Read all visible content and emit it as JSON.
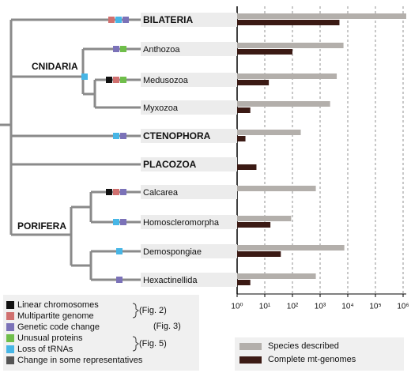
{
  "chart_data": {
    "type": "bar",
    "orientation": "horizontal",
    "xscale": "log",
    "categories": [
      "BILATERIA",
      "Anthozoa",
      "Medusozoa",
      "Myxozoa",
      "CTENOPHORA",
      "PLACOZOA",
      "Calcarea",
      "Homoscleromorpha",
      "Demospongiae",
      "Hexactinellida"
    ],
    "series": [
      {
        "name": "Species described",
        "color": "#b3afab",
        "values": [
          1300000,
          7000,
          4000,
          2300,
          200,
          1,
          700,
          90,
          7500,
          700
        ]
      },
      {
        "name": "Complete mt-genomes",
        "color": "#3b1a14",
        "values": [
          5000,
          100,
          14,
          3,
          2,
          5,
          1,
          16,
          38,
          3
        ]
      }
    ],
    "xlim": [
      1,
      1300000
    ],
    "xticks": [
      {
        "value": 1,
        "label": "10⁰"
      },
      {
        "value": 10,
        "label": "10¹"
      },
      {
        "value": 100,
        "label": "10²"
      },
      {
        "value": 1000,
        "label": "10³"
      },
      {
        "value": 10000,
        "label": "10⁴"
      },
      {
        "value": 100000,
        "label": "10⁵"
      },
      {
        "value": 1000000,
        "label": "10⁶"
      }
    ],
    "grid": true,
    "legend": "bottom"
  },
  "tree": {
    "groups": [
      "CNIDARIA",
      "PORIFERA"
    ]
  },
  "character_legend": {
    "items": [
      {
        "label": "Linear chromosomes",
        "color": "#111111"
      },
      {
        "label": "Multipartite genome",
        "color": "#d0706f"
      },
      {
        "label": "Genetic code change",
        "color": "#7b72b8"
      },
      {
        "label": "Unusual proteins",
        "color": "#6fbe4a"
      },
      {
        "label": "Loss of tRNAs",
        "color": "#47b6e6"
      },
      {
        "label": "Change in some representatives",
        "color": "#555555"
      }
    ],
    "figures": [
      "(Fig. 2)",
      "(Fig. 3)",
      "(Fig. 5)"
    ]
  }
}
